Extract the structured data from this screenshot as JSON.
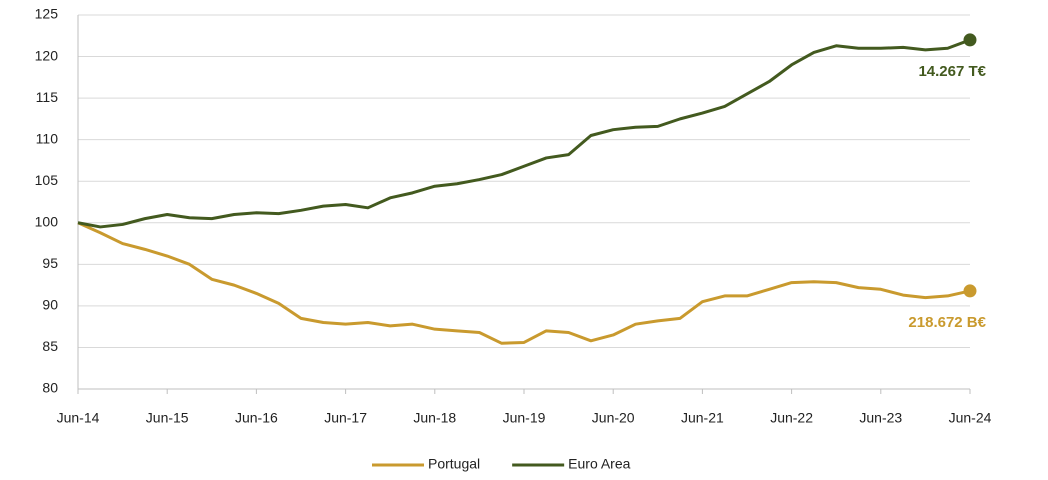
{
  "chart_data": {
    "type": "line",
    "x": [
      "2014-06",
      "2014-09",
      "2014-12",
      "2015-03",
      "2015-06",
      "2015-09",
      "2015-12",
      "2016-03",
      "2016-06",
      "2016-09",
      "2016-12",
      "2017-03",
      "2017-06",
      "2017-09",
      "2017-12",
      "2018-03",
      "2018-06",
      "2018-09",
      "2018-12",
      "2019-03",
      "2019-06",
      "2019-09",
      "2019-12",
      "2020-03",
      "2020-06",
      "2020-09",
      "2020-12",
      "2021-03",
      "2021-06",
      "2021-09",
      "2021-12",
      "2022-03",
      "2022-06",
      "2022-09",
      "2022-12",
      "2023-03",
      "2023-06",
      "2023-09",
      "2023-12",
      "2024-03",
      "2024-06"
    ],
    "series": [
      {
        "name": "Portugal",
        "color": "#c99a2e",
        "end_label": "218.672 B€",
        "values": [
          100,
          98.8,
          97.5,
          96.8,
          96,
          95,
          93.2,
          92.5,
          91.5,
          90.3,
          88.5,
          88,
          87.8,
          88,
          87.6,
          87.8,
          87.2,
          87,
          86.8,
          85.5,
          85.6,
          87,
          86.8,
          85.8,
          86.5,
          87.8,
          88.2,
          88.5,
          90.5,
          91.2,
          91.2,
          92,
          92.8,
          92.9,
          92.8,
          92.2,
          92,
          91.3,
          91,
          91.2,
          91.8
        ]
      },
      {
        "name": "Euro Area",
        "color": "#435a1f",
        "end_label": "14.267 T€",
        "values": [
          100,
          99.5,
          99.8,
          100.5,
          101,
          100.6,
          100.5,
          101,
          101.2,
          101.1,
          101.5,
          102,
          102.2,
          101.8,
          103,
          103.6,
          104.4,
          104.7,
          105.2,
          105.8,
          106.8,
          107.8,
          108.2,
          110.5,
          111.2,
          111.5,
          111.6,
          112.5,
          113.2,
          114,
          115.5,
          117,
          119,
          120.5,
          121.3,
          121,
          121,
          121.1,
          120.8,
          121,
          122
        ]
      }
    ],
    "xlim": [
      "2014-06",
      "2024-06"
    ],
    "xticks": [
      {
        "value": "2014-06",
        "label": "Jun-14"
      },
      {
        "value": "2015-06",
        "label": "Jun-15"
      },
      {
        "value": "2016-06",
        "label": "Jun-16"
      },
      {
        "value": "2017-06",
        "label": "Jun-17"
      },
      {
        "value": "2018-06",
        "label": "Jun-18"
      },
      {
        "value": "2019-06",
        "label": "Jun-19"
      },
      {
        "value": "2020-06",
        "label": "Jun-20"
      },
      {
        "value": "2021-06",
        "label": "Jun-21"
      },
      {
        "value": "2022-06",
        "label": "Jun-22"
      },
      {
        "value": "2023-06",
        "label": "Jun-23"
      },
      {
        "value": "2024-06",
        "label": "Jun-24"
      }
    ],
    "ylim": [
      80,
      125
    ],
    "yticks": [
      80,
      85,
      90,
      95,
      100,
      105,
      110,
      115,
      120,
      125
    ],
    "grid": true,
    "legend": "bottom"
  }
}
